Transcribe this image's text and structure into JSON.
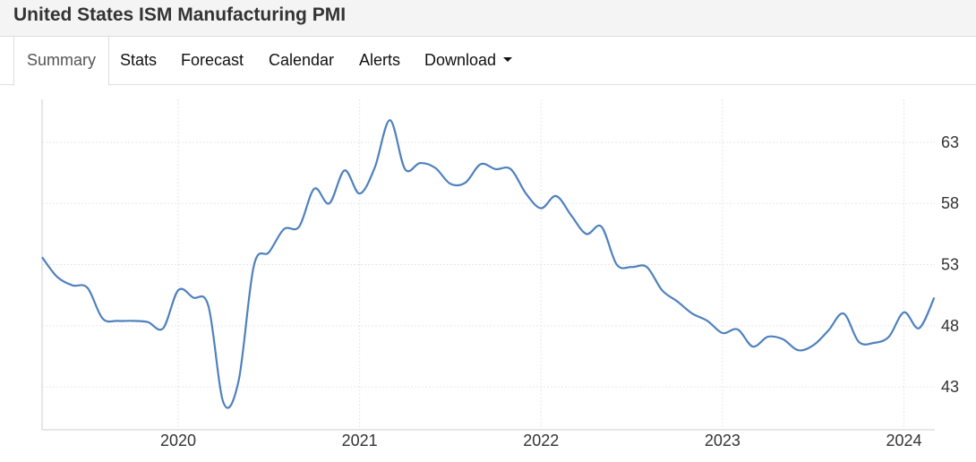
{
  "title": "United States ISM Manufacturing PMI",
  "tabs": [
    {
      "label": "Summary"
    },
    {
      "label": "Stats"
    },
    {
      "label": "Forecast"
    },
    {
      "label": "Calendar"
    },
    {
      "label": "Alerts"
    },
    {
      "label": "Download"
    }
  ],
  "colors": {
    "line": "#4f81bd",
    "grid": "#e6e6e6",
    "axis": "#cccccc"
  },
  "chart_data": {
    "type": "line",
    "title": "",
    "xlabel": "",
    "ylabel": "",
    "xlim": [
      2019.25,
      2024.17
    ],
    "ylim": [
      39.5,
      66.5
    ],
    "y_ticks": [
      43,
      48,
      53,
      58,
      63
    ],
    "y_tick_labels": [
      "43",
      "48",
      "53",
      "58",
      "63"
    ],
    "x_ticks": [
      2020,
      2021,
      2022,
      2023,
      2024
    ],
    "x_tick_labels": [
      "2020",
      "2021",
      "2022",
      "2023",
      "2024"
    ],
    "grid": true,
    "series": [
      {
        "name": "ISM Manufacturing PMI",
        "x": [
          2019.25,
          2019.333,
          2019.417,
          2019.5,
          2019.583,
          2019.667,
          2019.75,
          2019.833,
          2019.917,
          2020.0,
          2020.083,
          2020.167,
          2020.25,
          2020.333,
          2020.417,
          2020.5,
          2020.583,
          2020.667,
          2020.75,
          2020.833,
          2020.917,
          2021.0,
          2021.083,
          2021.167,
          2021.25,
          2021.333,
          2021.417,
          2021.5,
          2021.583,
          2021.667,
          2021.75,
          2021.833,
          2021.917,
          2022.0,
          2022.083,
          2022.167,
          2022.25,
          2022.333,
          2022.417,
          2022.5,
          2022.583,
          2022.667,
          2022.75,
          2022.833,
          2022.917,
          2023.0,
          2023.083,
          2023.167,
          2023.25,
          2023.333,
          2023.417,
          2023.5,
          2023.583,
          2023.667,
          2023.75,
          2023.833,
          2023.917,
          2024.0,
          2024.083,
          2024.167
        ],
        "values": [
          53.6,
          52.0,
          51.3,
          51.1,
          48.6,
          48.4,
          48.4,
          48.3,
          47.8,
          50.9,
          50.3,
          49.6,
          41.7,
          43.5,
          52.9,
          54.0,
          55.9,
          56.1,
          59.2,
          58.0,
          60.7,
          58.8,
          60.9,
          64.8,
          60.8,
          61.3,
          60.9,
          59.6,
          59.7,
          61.2,
          60.8,
          60.8,
          58.8,
          57.6,
          58.6,
          57.0,
          55.5,
          56.1,
          53.0,
          52.8,
          52.8,
          50.9,
          50.0,
          49.0,
          48.4,
          47.4,
          47.7,
          46.3,
          47.1,
          46.9,
          46.0,
          46.4,
          47.6,
          49.0,
          46.7,
          46.6,
          47.1,
          49.1,
          47.8,
          50.3
        ]
      }
    ]
  }
}
